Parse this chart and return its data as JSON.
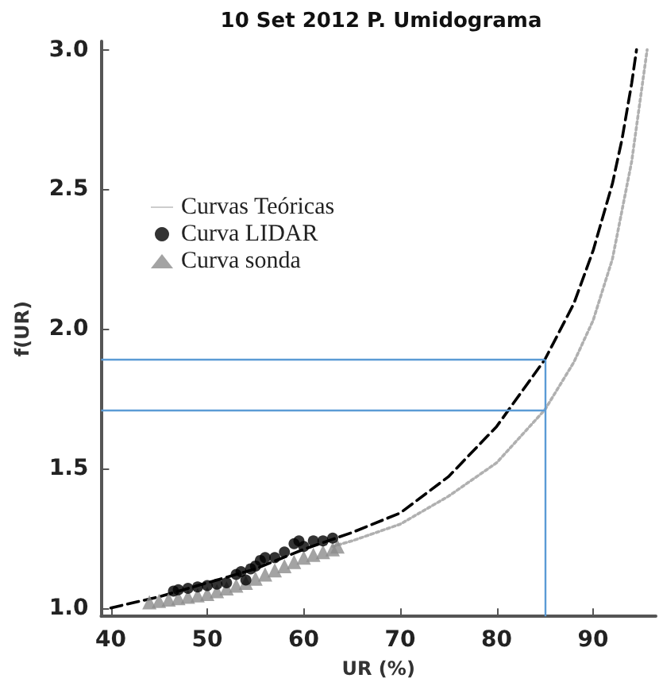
{
  "chart_data": {
    "type": "line",
    "title": "10 Set 2012 P. Umidograma",
    "xlabel": "UR (%)",
    "ylabel": "f(UR)",
    "xlim": [
      39,
      96.5
    ],
    "xticks": [
      40,
      50,
      60,
      70,
      80,
      90
    ],
    "ylim": [
      0.97,
      3.03
    ],
    "yticks": [
      {
        "value": 1,
        "label": "1.0"
      },
      {
        "value": 1.5,
        "label": "1.5"
      },
      {
        "value": 2,
        "label": "2.0"
      },
      {
        "value": 2.5,
        "label": "2.5"
      },
      {
        "value": 3,
        "label": "3.0"
      }
    ],
    "grid": false,
    "legend": "top left",
    "series": [
      {
        "color": "#000000",
        "line_style": "dashed",
        "marker": "none",
        "x": [
          40,
          45,
          50,
          55,
          60,
          65,
          70,
          75,
          80,
          85,
          88,
          90,
          92,
          93,
          94,
          94.5
        ],
        "values": [
          1.0,
          1.04,
          1.09,
          1.14,
          1.21,
          1.27,
          1.34,
          1.47,
          1.65,
          1.89,
          2.09,
          2.28,
          2.52,
          2.68,
          2.88,
          3.0
        ]
      },
      {
        "name": "Curvas Teóricas",
        "color": "#b0b0b0",
        "line_style": "dotted",
        "marker": "none",
        "x": [
          63,
          65,
          70,
          75,
          80,
          85,
          88,
          90,
          92,
          94,
          95,
          95.6
        ],
        "values": [
          1.22,
          1.24,
          1.3,
          1.4,
          1.52,
          1.71,
          1.88,
          2.03,
          2.25,
          2.6,
          2.85,
          3.0
        ]
      },
      {
        "type": "scatter",
        "name": "Curva LIDAR",
        "color": "#000000",
        "marker": "circle",
        "x": [
          46.5,
          47,
          48,
          49,
          50,
          51,
          52,
          53,
          53.5,
          54,
          54.5,
          55,
          55.5,
          56,
          57,
          58,
          59,
          59.5,
          60,
          61,
          62,
          63
        ],
        "values": [
          1.06,
          1.065,
          1.07,
          1.075,
          1.08,
          1.085,
          1.09,
          1.12,
          1.13,
          1.1,
          1.14,
          1.15,
          1.17,
          1.18,
          1.18,
          1.2,
          1.23,
          1.24,
          1.22,
          1.24,
          1.24,
          1.25
        ]
      },
      {
        "type": "scatter",
        "name": "Curva sonda",
        "color": "#8c8c8c",
        "marker": "triangle",
        "x": [
          44,
          45,
          46,
          47,
          48,
          49,
          50,
          51,
          52,
          53,
          54,
          55,
          56,
          57,
          58,
          59,
          60,
          61,
          62,
          63,
          63.5
        ],
        "values": [
          1.02,
          1.025,
          1.03,
          1.035,
          1.04,
          1.045,
          1.05,
          1.06,
          1.07,
          1.08,
          1.09,
          1.105,
          1.12,
          1.135,
          1.15,
          1.165,
          1.18,
          1.19,
          1.2,
          1.21,
          1.22
        ]
      }
    ],
    "ref_lines": [
      {
        "axis": "y",
        "value": 1.89,
        "color": "#5b9bd5"
      },
      {
        "axis": "y",
        "value": 1.71,
        "color": "#5b9bd5"
      },
      {
        "axis": "x",
        "value": 85,
        "color": "#5b9bd5"
      }
    ]
  }
}
